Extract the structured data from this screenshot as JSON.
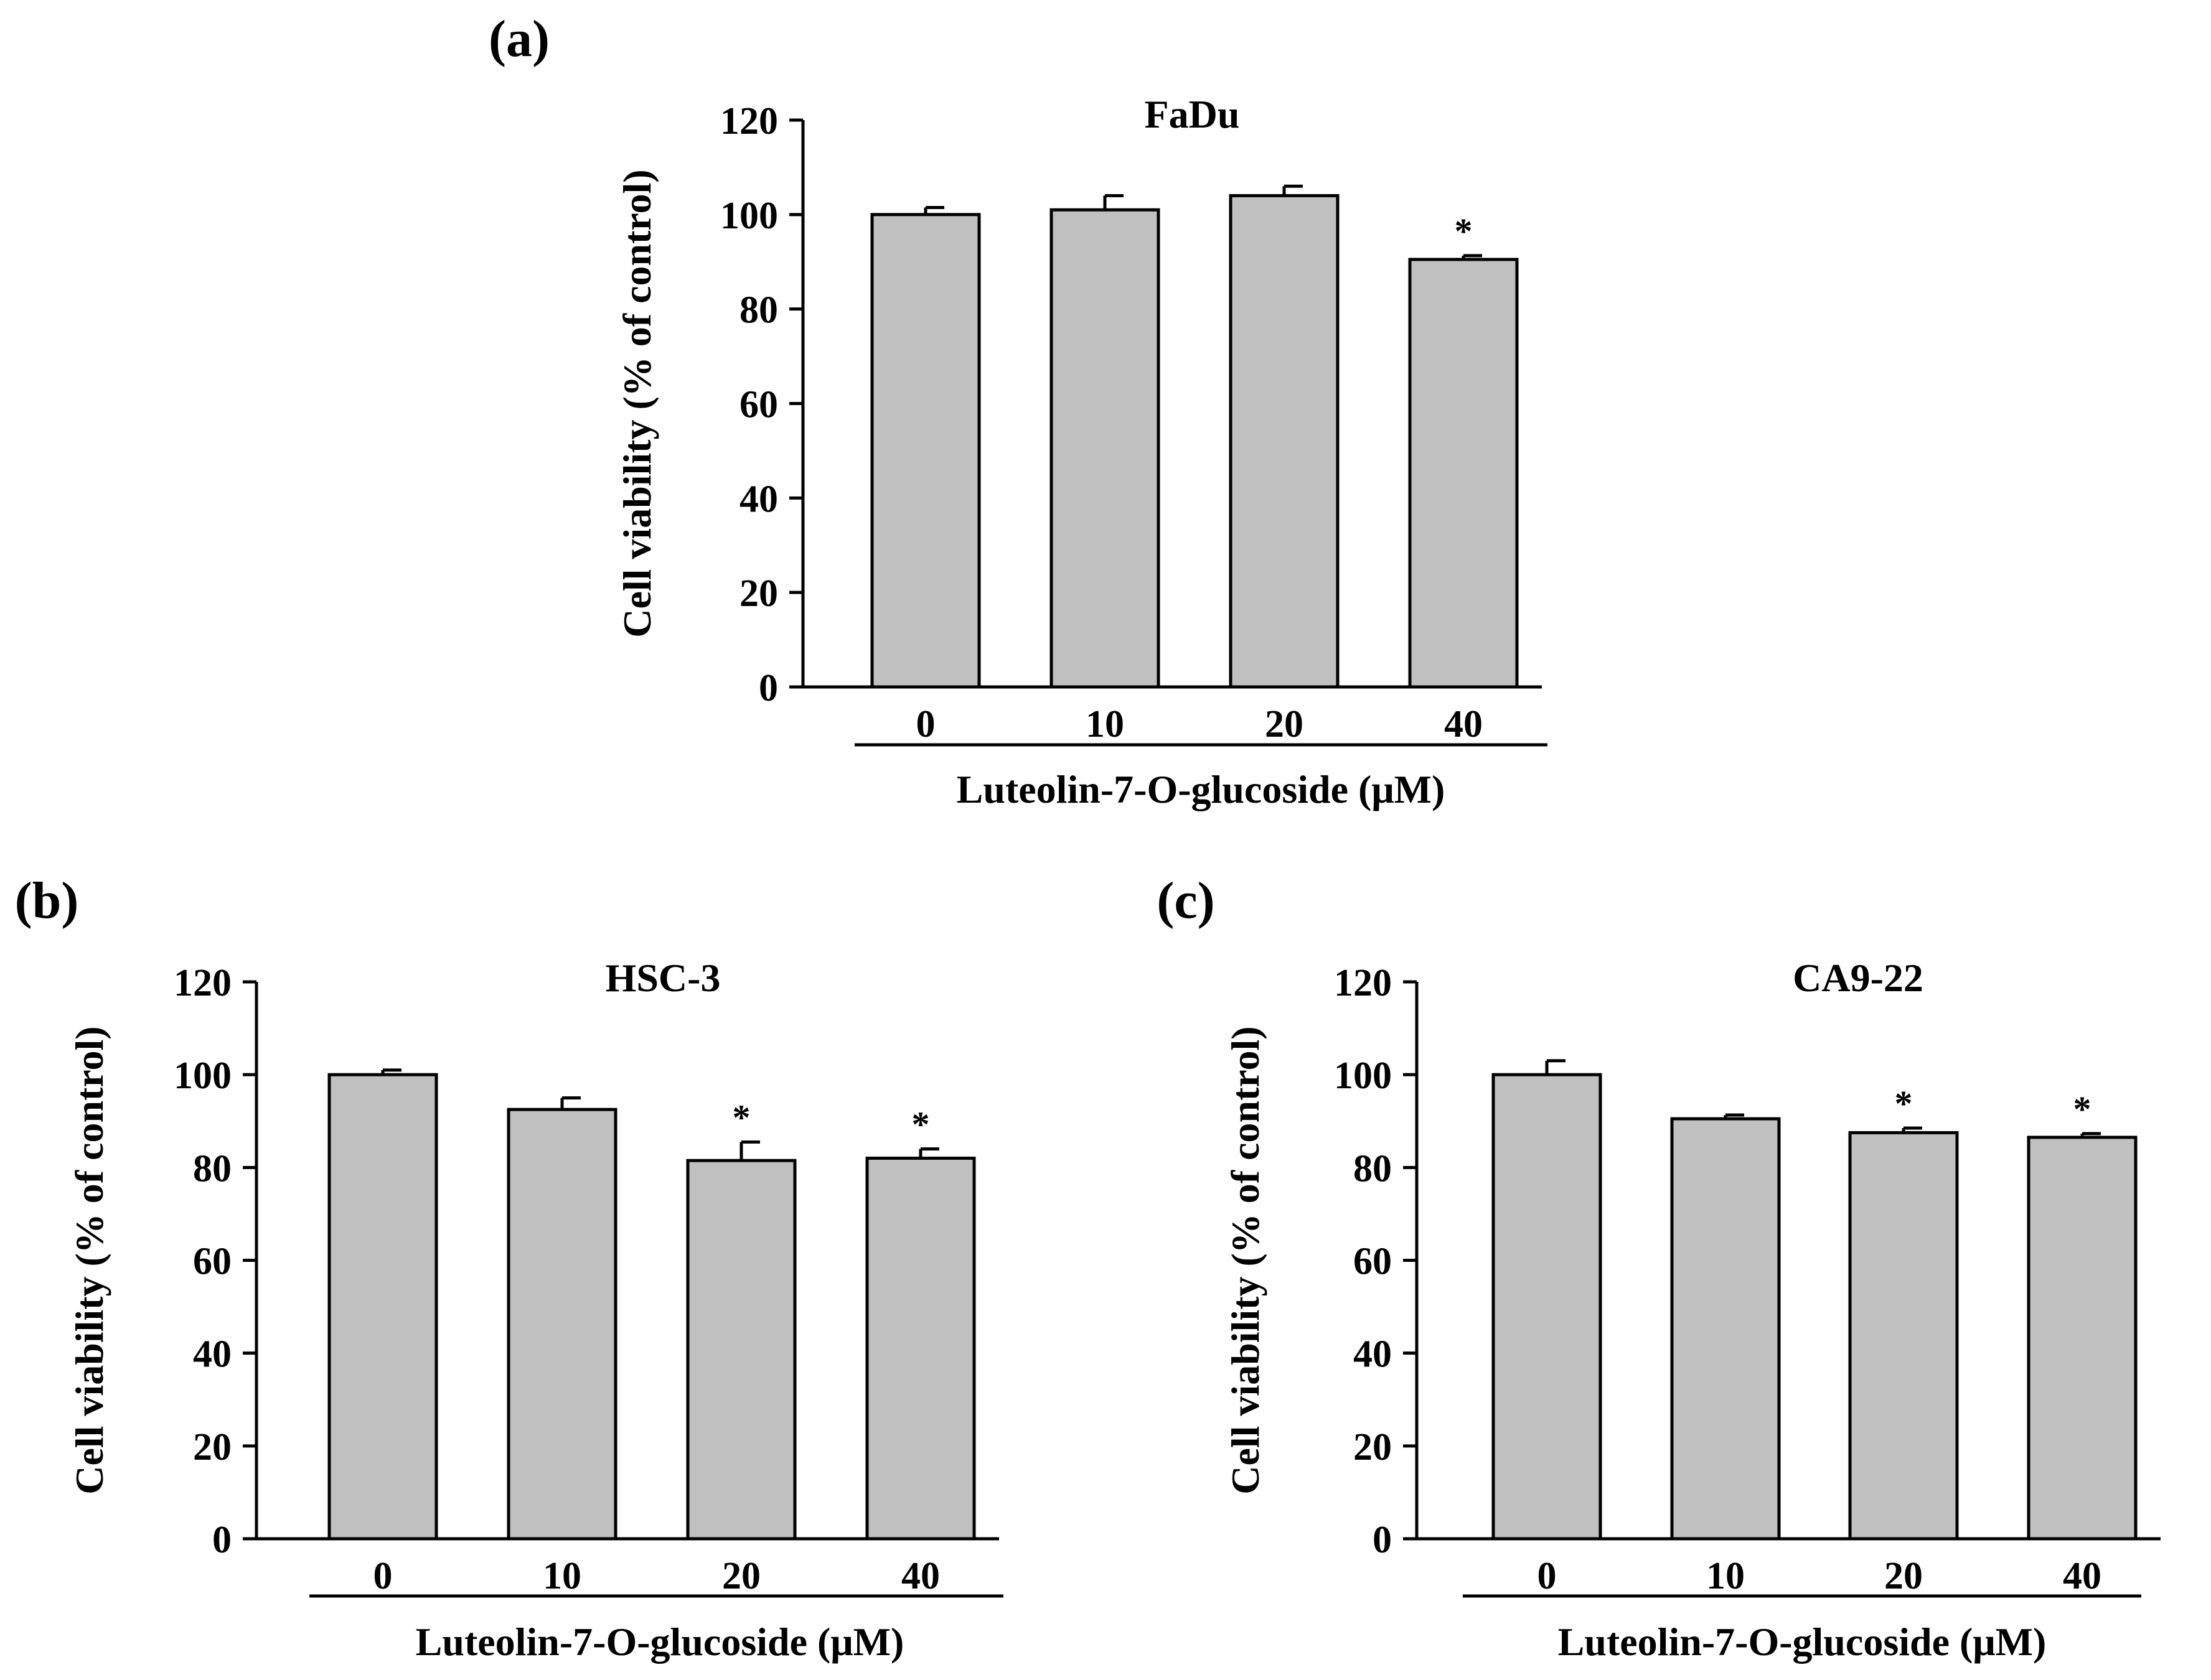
{
  "chart_data": [
    {
      "panel": "(a)",
      "type": "bar",
      "title": "FaDu",
      "ylabel": "Cell viability (% of control)",
      "xlabel": "Luteolin-7-O-glucoside (μM)",
      "categories": [
        "0",
        "10",
        "20",
        "40"
      ],
      "values": [
        100,
        101,
        104,
        90.5
      ],
      "errors": [
        1.5,
        3,
        2,
        0.8
      ],
      "significance": [
        "",
        "",
        "",
        "*"
      ],
      "ylim": [
        0,
        120
      ],
      "yticks": [
        "0",
        "20",
        "40",
        "60",
        "80",
        "100",
        "120"
      ],
      "bar_color": "#c0c0c0"
    },
    {
      "panel": "(b)",
      "type": "bar",
      "title": "HSC-3",
      "ylabel": "Cell viability (% of control)",
      "xlabel": "Luteolin-7-O-glucoside (μM)",
      "categories": [
        "0",
        "10",
        "20",
        "40"
      ],
      "values": [
        100,
        92.5,
        81.5,
        82
      ],
      "errors": [
        1,
        2.5,
        4,
        2
      ],
      "significance": [
        "",
        "",
        "*",
        "*"
      ],
      "ylim": [
        0,
        120
      ],
      "yticks": [
        "0",
        "20",
        "40",
        "60",
        "80",
        "100",
        "120"
      ],
      "bar_color": "#c0c0c0"
    },
    {
      "panel": "(c)",
      "type": "bar",
      "title": "CA9-22",
      "ylabel": "Cell viability (% of control)",
      "xlabel": "Luteolin-7-O-glucoside (μM)",
      "categories": [
        "0",
        "10",
        "20",
        "40"
      ],
      "values": [
        100,
        90.5,
        87.5,
        86.5
      ],
      "errors": [
        3,
        0.8,
        1,
        0.8
      ],
      "significance": [
        "",
        "",
        "*",
        "*"
      ],
      "ylim": [
        0,
        120
      ],
      "yticks": [
        "0",
        "20",
        "40",
        "60",
        "80",
        "100",
        "120"
      ],
      "bar_color": "#c0c0c0"
    }
  ]
}
